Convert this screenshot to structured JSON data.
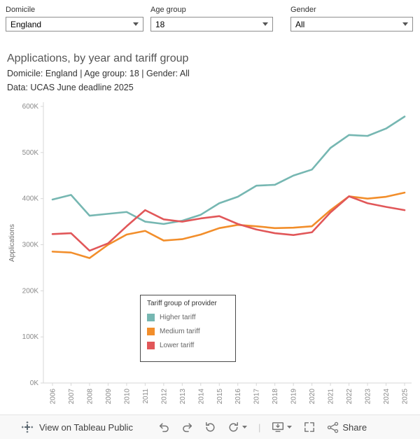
{
  "filters": [
    {
      "label": "Domicile",
      "value": "England"
    },
    {
      "label": "Age group",
      "value": "18"
    },
    {
      "label": "Gender",
      "value": "All"
    }
  ],
  "header": {
    "title": "Applications, by year and tariff group",
    "subtitle": "Domicile: England | Age group: 18 | Gender: All",
    "source": "Data: UCAS June deadline 2025"
  },
  "chart_data": {
    "type": "line",
    "x": [
      "2006",
      "2007",
      "2008",
      "2009",
      "2010",
      "2011",
      "2012",
      "2013",
      "2014",
      "2015",
      "2016",
      "2017",
      "2018",
      "2019",
      "2020",
      "2021",
      "2022",
      "2023",
      "2024",
      "2025"
    ],
    "series": [
      {
        "name": "Higher tariff",
        "color": "#76b7b2",
        "values": [
          398000,
          408000,
          363000,
          367000,
          371000,
          350000,
          345000,
          352000,
          365000,
          390000,
          404000,
          428000,
          430000,
          450000,
          463000,
          510000,
          538000,
          536000,
          552000,
          578000
        ]
      },
      {
        "name": "Medium tariff",
        "color": "#f28e2b",
        "values": [
          285000,
          283000,
          271000,
          300000,
          322000,
          330000,
          309000,
          312000,
          322000,
          336000,
          343000,
          340000,
          336000,
          337000,
          340000,
          375000,
          405000,
          400000,
          404000,
          413000
        ]
      },
      {
        "name": "Lower tariff",
        "color": "#e15759",
        "values": [
          323000,
          325000,
          287000,
          303000,
          340000,
          375000,
          355000,
          350000,
          357000,
          362000,
          345000,
          333000,
          325000,
          321000,
          327000,
          370000,
          405000,
          390000,
          382000,
          375000
        ]
      }
    ],
    "ylabel": "Applications",
    "ylim": [
      0,
      600000
    ],
    "yticks": [
      "0K",
      "100K",
      "200K",
      "300K",
      "400K",
      "500K",
      "600K"
    ],
    "grid": false,
    "legend_title": "Tariff group of provider",
    "legend_position": "inside-bottom-center"
  },
  "legend": {
    "title": "Tariff group of provider"
  },
  "toolbar": {
    "view_label": "View on Tableau Public",
    "share_label": "Share"
  }
}
